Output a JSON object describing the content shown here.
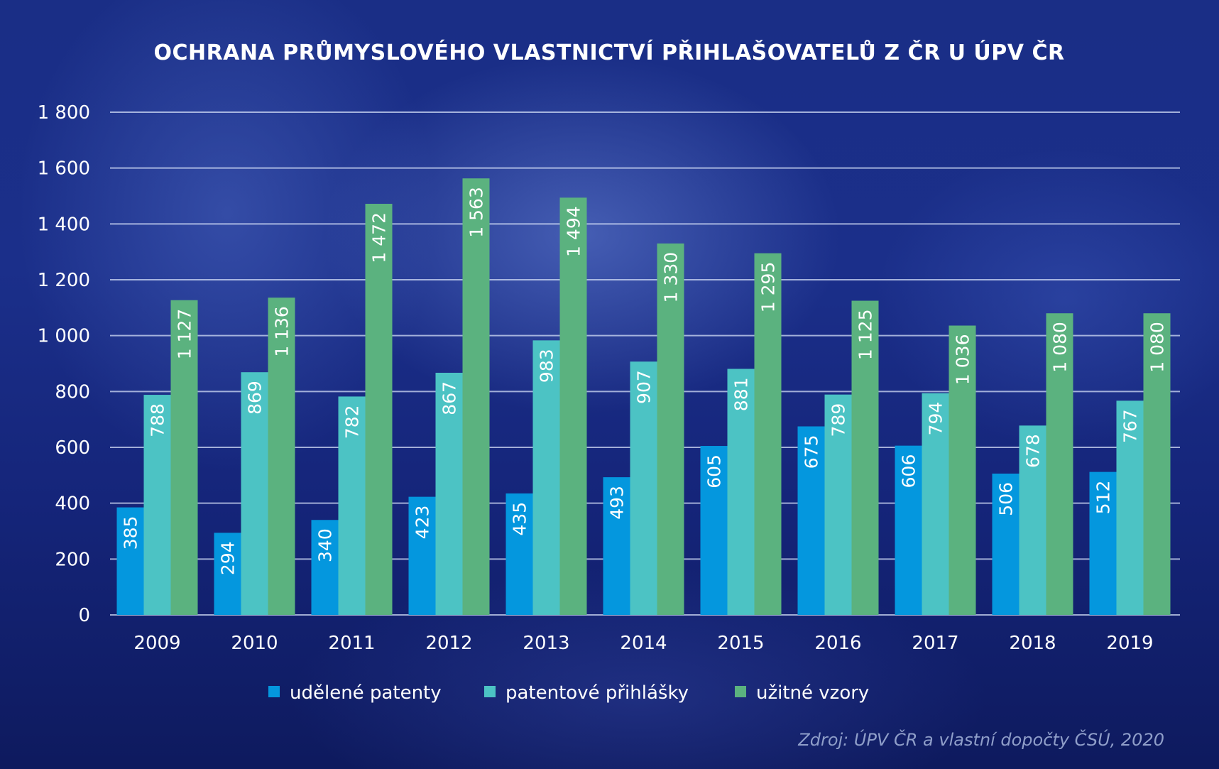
{
  "colors": {
    "udelene_patenty": "#0497de",
    "patentove_prihlasky": "#4cc3c4",
    "uzitne_vzory": "#5bb27f"
  },
  "source_note": "Zdroj: ÚPV ČR a vlastní dopočty ČSÚ, 2020",
  "chart_data": {
    "type": "bar",
    "title": "OCHRANA PRŮMYSLOVÉHO VLASTNICTVÍ PŘIHLAŠOVATELŮ Z ČR U ÚPV ČR",
    "xlabel": "",
    "ylabel": "",
    "ylim": [
      0,
      1800
    ],
    "yticks": [
      0,
      200,
      400,
      600,
      800,
      1000,
      1200,
      1400,
      1600,
      1800
    ],
    "ytick_labels": [
      "0",
      "200",
      "400",
      "600",
      "800",
      "1 000",
      "1 200",
      "1 400",
      "1 600",
      "1 800"
    ],
    "grid": true,
    "legend_position": "bottom",
    "categories": [
      "2009",
      "2010",
      "2011",
      "2012",
      "2013",
      "2014",
      "2015",
      "2016",
      "2017",
      "2018",
      "2019"
    ],
    "series": [
      {
        "name": "udělené patenty",
        "color_key": "udelene_patenty",
        "values": [
          385,
          294,
          340,
          423,
          435,
          493,
          605,
          675,
          606,
          506,
          512
        ],
        "labels": [
          "385",
          "294",
          "340",
          "423",
          "435",
          "493",
          "605",
          "675",
          "606",
          "506",
          "512"
        ]
      },
      {
        "name": "patentové přihlášky",
        "color_key": "patentove_prihlasky",
        "values": [
          788,
          869,
          782,
          867,
          983,
          907,
          881,
          789,
          794,
          678,
          767
        ],
        "labels": [
          "788",
          "869",
          "782",
          "867",
          "983",
          "907",
          "881",
          "789",
          "794",
          "678",
          "767"
        ]
      },
      {
        "name": "užitné vzory",
        "color_key": "uzitne_vzory",
        "values": [
          1127,
          1136,
          1472,
          1563,
          1494,
          1330,
          1295,
          1125,
          1036,
          1080,
          1080
        ],
        "labels": [
          "1 127",
          "1 136",
          "1 472",
          "1 563",
          "1 494",
          "1 330",
          "1 295",
          "1 125",
          "1 036",
          "1 080",
          "1 080"
        ]
      }
    ]
  }
}
